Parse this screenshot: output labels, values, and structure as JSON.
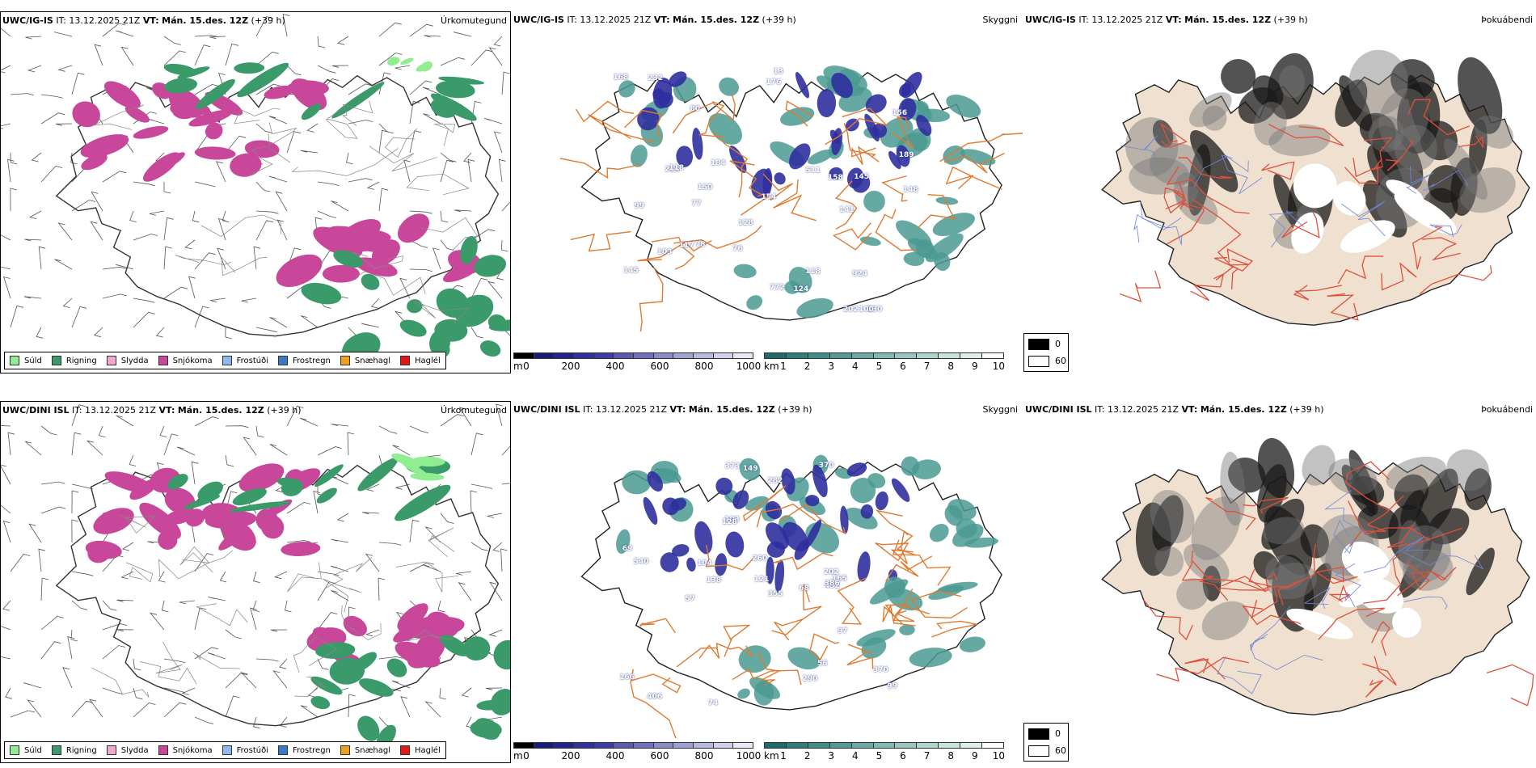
{
  "rows": [
    {
      "model": "UWC/IG-IS",
      "it_label": "IT:",
      "it_value": "13.12.2025 21Z",
      "vt_label": "VT:",
      "vt_value": "Mán. 15.des. 12Z",
      "lead": "(+39 h)",
      "precip_title": "Úrkomutegund",
      "sky_title": "Skyggni",
      "fog_title": "Þokuábendi",
      "visibility_numbers": [
        "103",
        "99",
        "148",
        "13",
        "128",
        "213",
        "232",
        "141",
        "130",
        "80",
        "76",
        "77",
        "78",
        "158",
        "145",
        "176",
        "168",
        "202",
        "150",
        "118",
        "154",
        "189",
        "156",
        "184",
        "100",
        "118",
        "124",
        "117",
        "924",
        "511",
        "772",
        "145"
      ]
    },
    {
      "model": "UWC/DINI ISL",
      "it_label": "IT:",
      "it_value": "13.12.2025 21Z",
      "vt_label": "VT:",
      "vt_value": "Mán. 15.des. 12Z",
      "lead": "(+39 h)",
      "precip_title": "Úrkomutegund",
      "sky_title": "Skyggni",
      "fog_title": "Þokuábendi",
      "visibility_numbers": [
        "166",
        "260",
        "370",
        "373",
        "121",
        "56",
        "69",
        "57",
        "103",
        "128",
        "406",
        "104",
        "370",
        "149",
        "97",
        "74",
        "282",
        "540",
        "68",
        "202",
        "290",
        "99",
        "138",
        "165",
        "355",
        "432",
        "386"
      ]
    }
  ],
  "precip_legend": [
    {
      "label": "Súld",
      "color": "#90ee90"
    },
    {
      "label": "Rigning",
      "color": "#3a9a6a"
    },
    {
      "label": "Slydda",
      "color": "#f0a8d0"
    },
    {
      "label": "Snjókoma",
      "color": "#c8479a"
    },
    {
      "label": "Frostúði",
      "color": "#90b8ec"
    },
    {
      "label": "Frostregn",
      "color": "#3a78c8"
    },
    {
      "label": "Snæhagl",
      "color": "#f0a020"
    },
    {
      "label": "Haglél",
      "color": "#e01818"
    }
  ],
  "height_bar": {
    "unit": "m",
    "ticks": [
      "0",
      "200",
      "400",
      "600",
      "800",
      "1000"
    ],
    "colors": [
      "#000000",
      "#1a1a7a",
      "#23238e",
      "#3030a0",
      "#3d3da8",
      "#5a5ab4",
      "#7070c0",
      "#8c8cc8",
      "#a0a0d4",
      "#b8b8e0",
      "#d0d0ec",
      "#e8e8f6"
    ]
  },
  "vis_bar": {
    "unit": "km",
    "ticks": [
      "1",
      "2",
      "3",
      "4",
      "5",
      "6",
      "7",
      "8",
      "9",
      "10"
    ],
    "colors": [
      "#1f6b6b",
      "#2e7f7a",
      "#3f8e88",
      "#539c96",
      "#69aaa4",
      "#80b8b2",
      "#98c6c0",
      "#b0d4ce",
      "#c8e2dc",
      "#e0eeea",
      "#ffffff"
    ]
  },
  "cloud_legend": [
    {
      "label": "0",
      "color": "#000000"
    },
    {
      "label": "60",
      "color": "#ffffff"
    }
  ],
  "colors": {
    "rain": "#3a9a6a",
    "snow": "#c8479a",
    "drizzle": "#90ee90",
    "road": "#e07a30",
    "fog_land": "#f0e0d0",
    "fog_road": "#e0503a",
    "vis_blue": "#2f2f9e",
    "vis_teal": "#4a9a92"
  }
}
